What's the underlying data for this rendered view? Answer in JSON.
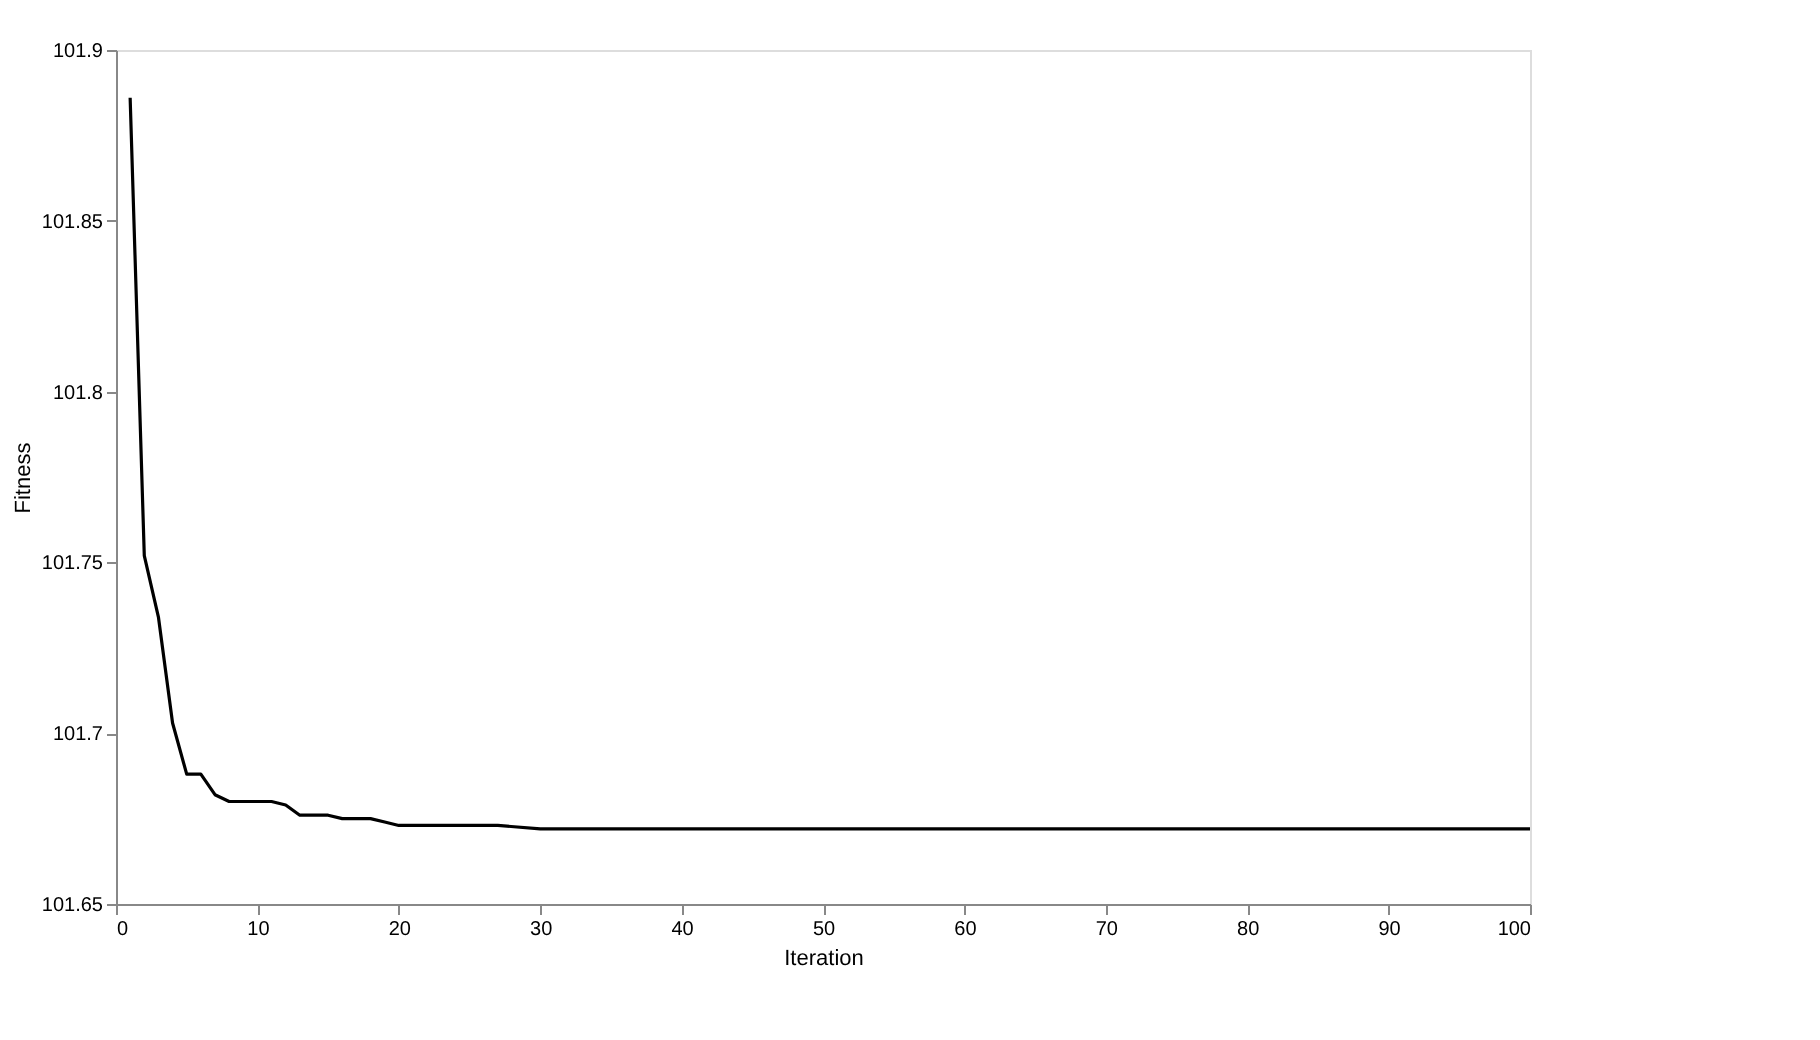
{
  "chart_data": {
    "type": "line",
    "xlabel": "Iteration",
    "ylabel": "Fitness",
    "x": [
      1,
      2,
      3,
      4,
      5,
      6,
      7,
      8,
      9,
      10,
      11,
      12,
      13,
      14,
      15,
      16,
      17,
      18,
      19,
      20,
      21,
      25,
      27,
      30,
      40,
      50,
      60,
      70,
      80,
      90,
      100
    ],
    "series": [
      {
        "color": "#000000",
        "values": [
          101.886,
          101.752,
          101.734,
          101.703,
          101.688,
          101.688,
          101.682,
          101.68,
          101.68,
          101.68,
          101.68,
          101.679,
          101.676,
          101.676,
          101.676,
          101.675,
          101.675,
          101.675,
          101.674,
          101.673,
          101.673,
          101.673,
          101.673,
          101.672,
          101.672,
          101.672,
          101.672,
          101.672,
          101.672,
          101.672,
          101.672
        ]
      }
    ],
    "xlim": [
      0,
      100
    ],
    "xticks": [
      0,
      10,
      20,
      30,
      40,
      50,
      60,
      70,
      80,
      90,
      100
    ],
    "ylim": [
      101.65,
      101.9
    ],
    "yticks": [
      101.65,
      101.7,
      101.75,
      101.8,
      101.85,
      101.9
    ],
    "grid": false,
    "marker": "none",
    "line_style": "solid"
  }
}
